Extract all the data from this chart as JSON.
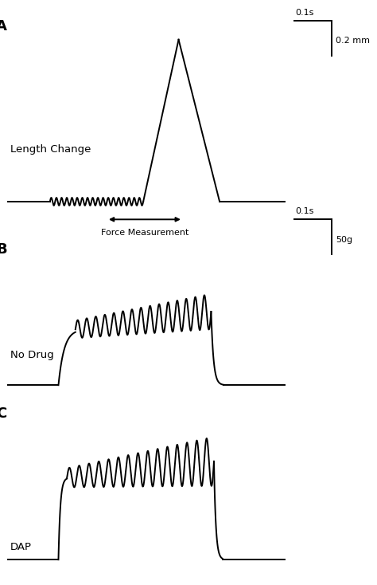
{
  "fig_width": 4.74,
  "fig_height": 7.34,
  "bg_color": "#ffffff",
  "line_color": "#000000",
  "line_width": 1.4,
  "panel_A": {
    "label": "A",
    "ylabel": "Length Change",
    "scalebar_time": "0.1s",
    "scalebar_len": "0.2 mm",
    "force_label": "Force Measurement"
  },
  "panel_B": {
    "label": "B",
    "ylabel": "No Drug",
    "scalebar_time": "0.1s",
    "scalebar_len": "50g"
  },
  "panel_C": {
    "label": "C",
    "ylabel": "DAP"
  }
}
